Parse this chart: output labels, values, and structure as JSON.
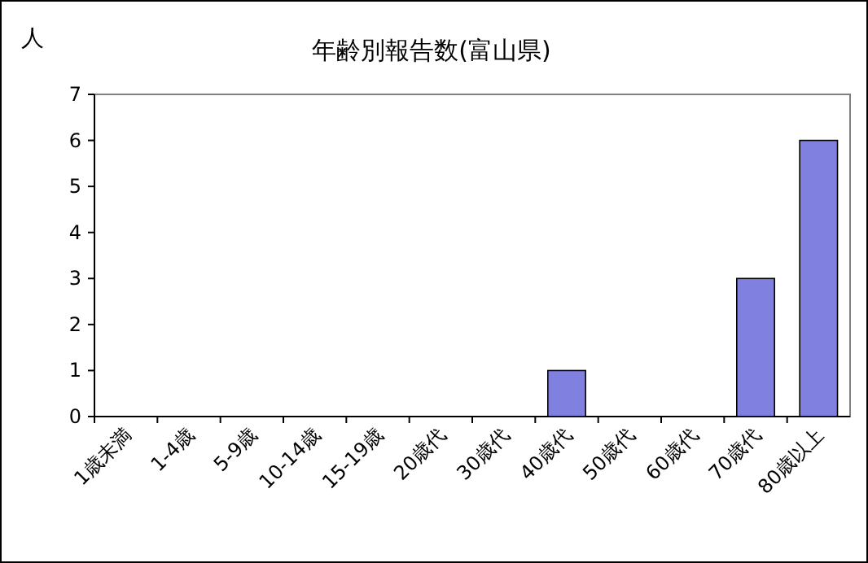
{
  "chart_data": {
    "type": "bar",
    "title": "年齢別報告数(富山県)",
    "ylabel": "人",
    "categories": [
      "1歳未満",
      "1-4歳",
      "5-9歳",
      "10-14歳",
      "15-19歳",
      "20歳代",
      "30歳代",
      "40歳代",
      "50歳代",
      "60歳代",
      "70歳代",
      "80歳以上"
    ],
    "values": [
      0,
      0,
      0,
      0,
      0,
      0,
      0,
      1,
      0,
      0,
      3,
      6
    ],
    "color": "#8080e0",
    "ylim": [
      0,
      7
    ],
    "yticks": [
      0,
      1,
      2,
      3,
      4,
      5,
      6,
      7
    ],
    "grid": false
  }
}
